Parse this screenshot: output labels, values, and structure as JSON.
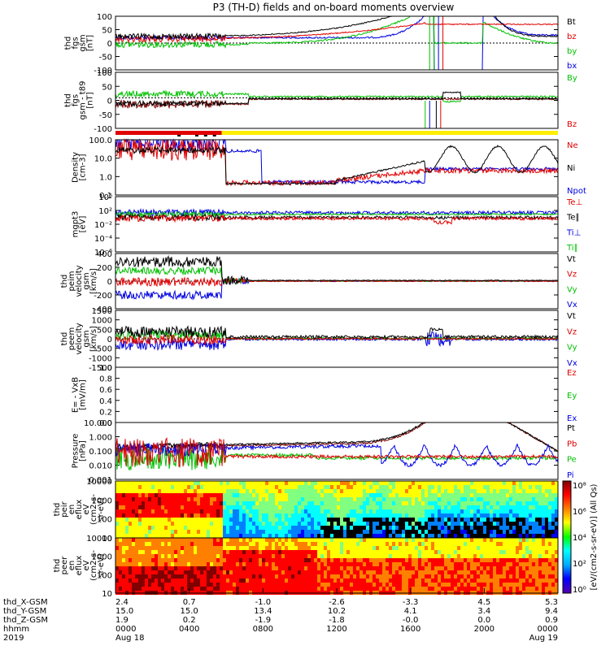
{
  "title": "P3 (TH-D) fields and on-board moments overview",
  "chart_data": [
    {
      "type": "line",
      "panel": "fgs",
      "ylabel": [
        "thd",
        "fgs",
        "gsm",
        "[nT]"
      ],
      "yticks": [
        "100",
        "50",
        "0",
        "-50",
        "-100"
      ],
      "ylim": [
        -100,
        100
      ],
      "legend": [
        {
          "name": "Bt",
          "color": "#000000"
        },
        {
          "name": "bz",
          "color": "#e00000"
        },
        {
          "name": "by",
          "color": "#00c000"
        },
        {
          "name": "bx",
          "color": "#0000e0"
        }
      ]
    },
    {
      "type": "line",
      "panel": "fgs-t89",
      "ylabel": [
        "thd",
        "fgs",
        "gsm - t89",
        "[nT]"
      ],
      "yticks": [
        "100",
        "50",
        "0",
        "-50",
        "-100"
      ],
      "ylim": [
        -120,
        100
      ],
      "legend": [
        {
          "name": "By",
          "color": "#00c000"
        },
        {
          "name": "Bz",
          "color": "#e00000"
        }
      ]
    },
    {
      "type": "line",
      "panel": "density",
      "log": true,
      "ylabel": [
        "Density",
        "[cm-3]"
      ],
      "yticks": [
        "100.0",
        "10.0",
        "1.0",
        "0.1"
      ],
      "legend": [
        {
          "name": "Ne",
          "color": "#e00000"
        },
        {
          "name": "Ni",
          "color": "#000000"
        },
        {
          "name": "Npot",
          "color": "#0000e0"
        }
      ]
    },
    {
      "type": "line",
      "panel": "temperature",
      "log": true,
      "ylabel": [
        "mgpt3",
        "[eV]"
      ],
      "yticks": [
        "10⁶",
        "10²",
        "10⁻²",
        "10⁻⁴",
        "10⁻⁶"
      ],
      "legend": [
        {
          "name": "Te⊥",
          "color": "#e00000"
        },
        {
          "name": "Te∥",
          "color": "#000000"
        },
        {
          "name": "Ti⊥",
          "color": "#0000e0"
        },
        {
          "name": "Ti∥",
          "color": "#00c000"
        }
      ]
    },
    {
      "type": "line",
      "panel": "peim-velocity",
      "ylabel": [
        "thd",
        "peim",
        "velocity",
        "gsm",
        "[km/s]"
      ],
      "yticks": [
        "400",
        "200",
        "0",
        "-200",
        "-400"
      ],
      "ylim": [
        -400,
        400
      ],
      "legend": [
        {
          "name": "Vt",
          "color": "#000000"
        },
        {
          "name": "Vz",
          "color": "#e00000"
        },
        {
          "name": "Vy",
          "color": "#00c000"
        },
        {
          "name": "Vx",
          "color": "#0000e0"
        }
      ]
    },
    {
      "type": "line",
      "panel": "peem-velocity",
      "ylabel": [
        "thd",
        "peem",
        "velocity",
        "gsm",
        "[km/s]"
      ],
      "yticks": [
        "1500",
        "1000",
        "500",
        "0",
        "-500",
        "-1000",
        "-1500"
      ],
      "ylim": [
        -1500,
        1500
      ],
      "legend": [
        {
          "name": "Vt",
          "color": "#000000"
        },
        {
          "name": "Vz",
          "color": "#e00000"
        },
        {
          "name": "Vy",
          "color": "#00c000"
        },
        {
          "name": "Vx",
          "color": "#0000e0"
        }
      ]
    },
    {
      "type": "line",
      "panel": "efield",
      "ylabel": [
        "E= - VxB",
        "[mV/m]"
      ],
      "yticks": [
        "1.0",
        "0.8",
        "0.6",
        "0.4",
        "0.2",
        "0.0"
      ],
      "ylim": [
        0,
        1
      ],
      "legend": [
        {
          "name": "Ez",
          "color": "#e00000"
        },
        {
          "name": "Ey",
          "color": "#00c000"
        },
        {
          "name": "Ex",
          "color": "#0000e0"
        }
      ]
    },
    {
      "type": "line",
      "panel": "pressure",
      "log": true,
      "ylabel": [
        "Pressure",
        "[nPa]"
      ],
      "yticks": [
        "10.000",
        "1.000",
        "0.100",
        "0.010",
        "0.001"
      ],
      "legend": [
        {
          "name": "Pt",
          "color": "#000000"
        },
        {
          "name": "Pb",
          "color": "#e00000"
        },
        {
          "name": "Pe",
          "color": "#00c000"
        },
        {
          "name": "Pi",
          "color": "#0000e0"
        }
      ]
    },
    {
      "type": "heatmap",
      "panel": "peir",
      "ylabel": [
        "thd",
        "peir",
        "en",
        "eflux",
        "eV",
        "(cm2-s-",
        "sr-eV)"
      ],
      "yticks": [
        "10000",
        "1000",
        "100",
        "10"
      ]
    },
    {
      "type": "heatmap",
      "panel": "peer",
      "ylabel": [
        "thd",
        "peer",
        "en",
        "eflux",
        "eV",
        "(cm2-s-",
        "sr-eV)"
      ],
      "yticks": [
        "10000",
        "1000",
        "100",
        "10"
      ]
    }
  ],
  "colorbar": {
    "label": "[eV/(cm2-s-sr-eV)] (All Qs)",
    "ticks": [
      "10⁸",
      "10⁶",
      "10⁴",
      "10²",
      "10⁰"
    ]
  },
  "time_axis": {
    "rows": [
      {
        "label": "thd_X-GSM",
        "values": [
          "2.4",
          "0.7",
          "-1.0",
          "-2.6",
          "-3.3",
          "4.5",
          "5.3"
        ]
      },
      {
        "label": "thd_Y-GSM",
        "values": [
          "15.0",
          "15.0",
          "13.4",
          "10.2",
          "4.1",
          "3.4",
          "9.4"
        ]
      },
      {
        "label": "thd_Z-GSM",
        "values": [
          "1.9",
          "0.2",
          "-1.9",
          "-1.8",
          "-0.0",
          "0.0",
          "0.9"
        ]
      },
      {
        "label": "hhmm",
        "values": [
          "0000",
          "0400",
          "0800",
          "1200",
          "1600",
          "2000",
          "0000"
        ]
      },
      {
        "label": "2019",
        "values": [
          "Aug 18",
          "",
          "",
          "",
          "",
          "",
          "Aug 19"
        ]
      }
    ]
  }
}
